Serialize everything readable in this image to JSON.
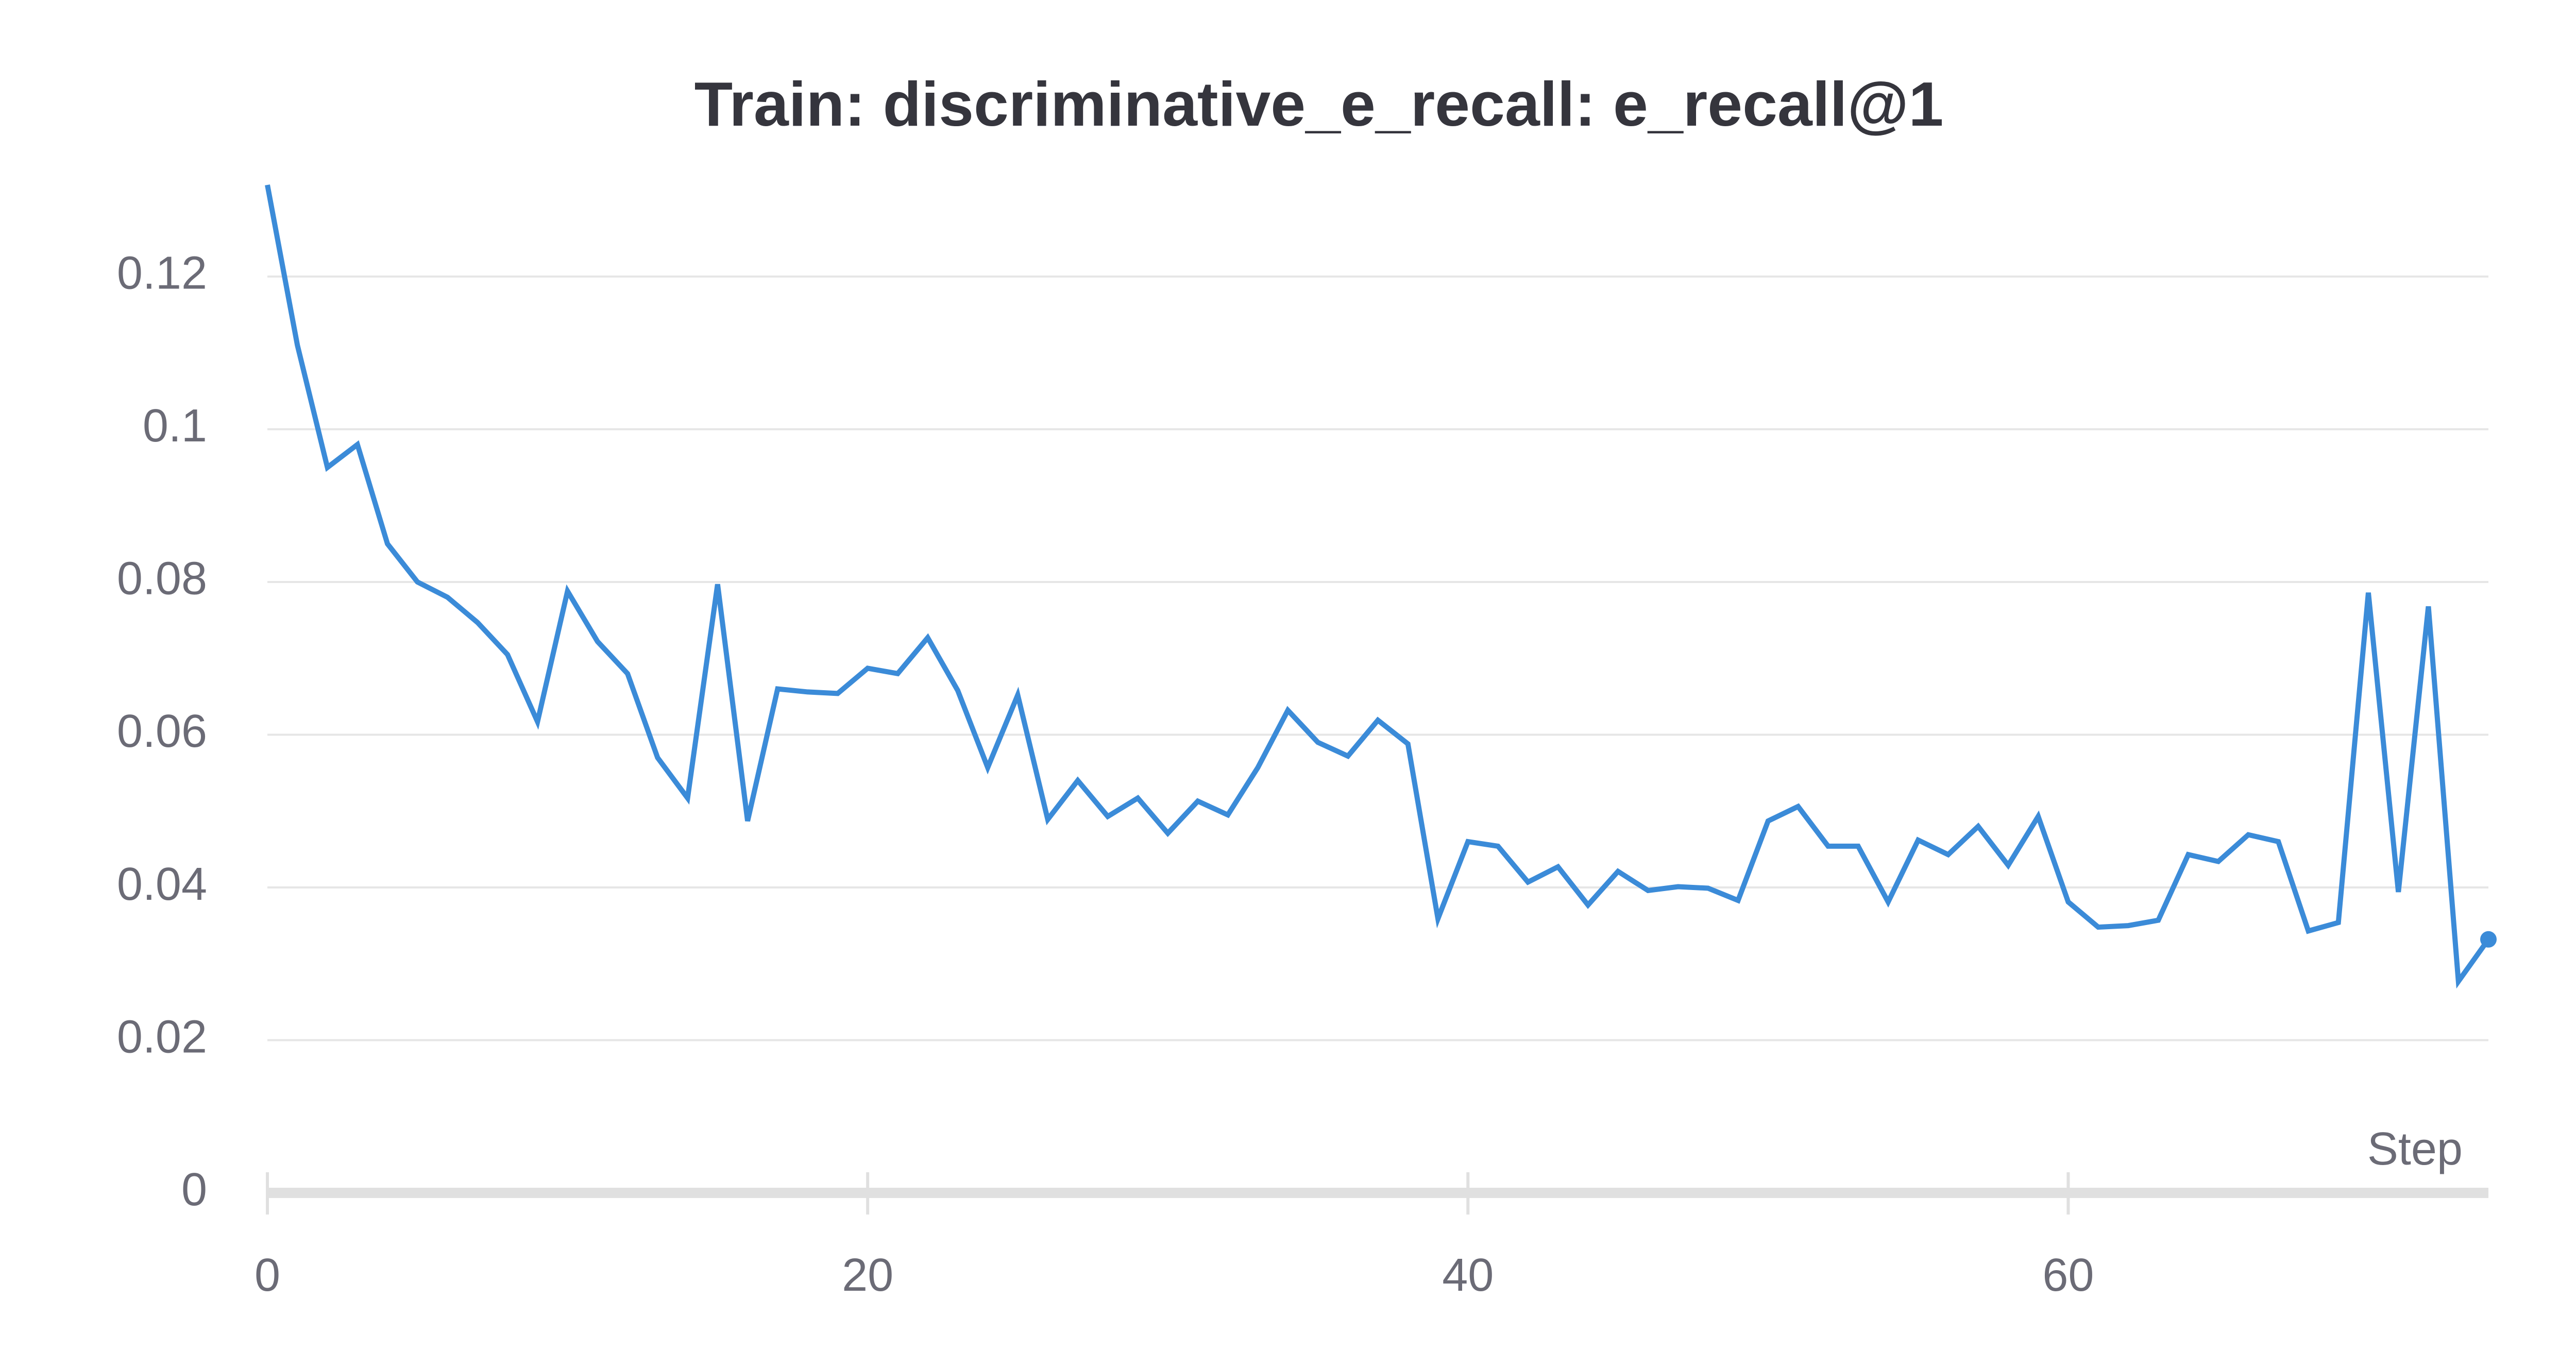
{
  "chart_data": {
    "type": "line",
    "title": "Train: discriminative_e_recall: e_recall@1",
    "xlabel": "Step",
    "x": [
      0,
      1,
      2,
      3,
      4,
      5,
      6,
      7,
      8,
      9,
      10,
      11,
      12,
      13,
      14,
      15,
      16,
      17,
      18,
      19,
      20,
      21,
      22,
      23,
      24,
      25,
      26,
      27,
      28,
      29,
      30,
      31,
      32,
      33,
      34,
      35,
      36,
      37,
      38,
      39,
      40,
      41,
      42,
      43,
      44,
      45,
      46,
      47,
      48,
      49,
      50,
      51,
      52,
      53,
      54,
      55,
      56,
      57,
      58,
      59,
      60,
      61,
      62,
      63,
      64,
      65,
      66,
      67,
      68,
      69,
      70,
      71,
      72,
      73,
      74
    ],
    "series": [
      {
        "color": "#3b8bd8",
        "values": [
          0.132,
          0.111,
          0.095,
          0.098,
          0.085,
          0.08,
          0.078,
          0.0747,
          0.0705,
          0.0617,
          0.0788,
          0.0722,
          0.068,
          0.057,
          0.0517,
          0.0797,
          0.0487,
          0.066,
          0.0656,
          0.0654,
          0.0687,
          0.068,
          0.0727,
          0.0658,
          0.0557,
          0.0652,
          0.0489,
          0.054,
          0.0493,
          0.0517,
          0.0471,
          0.0513,
          0.0495,
          0.0557,
          0.0632,
          0.059,
          0.0572,
          0.0619,
          0.0588,
          0.0359,
          0.046,
          0.0454,
          0.0407,
          0.0427,
          0.0377,
          0.0421,
          0.0396,
          0.0401,
          0.0399,
          0.0383,
          0.0487,
          0.0506,
          0.0454,
          0.0454,
          0.0381,
          0.0462,
          0.0443,
          0.048,
          0.0429,
          0.0493,
          0.0381,
          0.0348,
          0.035,
          0.0357,
          0.0443,
          0.0434,
          0.0469,
          0.046,
          0.0343,
          0.0354,
          0.0786,
          0.0394,
          0.0768,
          0.0277,
          0.0332
        ]
      }
    ],
    "xlim": [
      0,
      74
    ],
    "xticks": [
      0,
      20,
      40,
      60
    ],
    "ylim": [
      0,
      0.132
    ],
    "yticks": [
      0,
      0.02,
      0.04,
      0.06,
      0.08,
      0.1,
      0.12
    ],
    "grid": true
  }
}
